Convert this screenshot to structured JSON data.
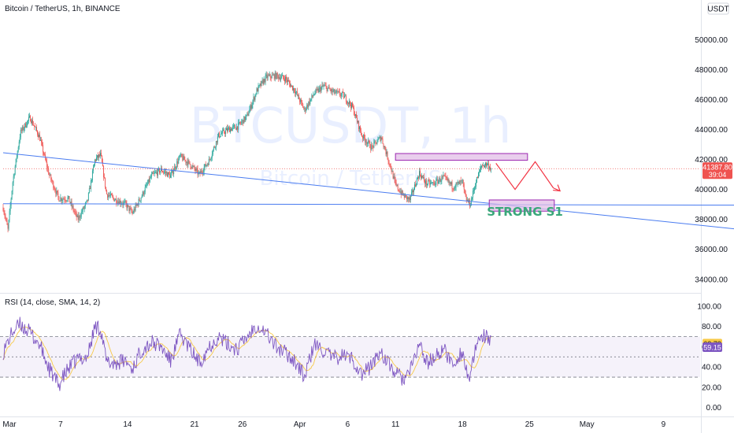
{
  "header": {
    "symbol_line": "Bitcoin / TetherUS, 1h, BINANCE",
    "currency_badge": "USDT"
  },
  "watermark": {
    "ticker": "BTCUSDT, 1h",
    "name": "Bitcoin / TetherUS"
  },
  "colors": {
    "up": "#26a69a",
    "down": "#ef5350",
    "trendline": "#4a7cf0",
    "zone_fill": "#e1bee7",
    "zone_stroke": "#9c27b0",
    "rsi_line": "#7e57c2",
    "rsi_ma": "#f7c948",
    "projection": "#f23645"
  },
  "chart_data": [
    {
      "type": "candlestick",
      "x_axis": {
        "tick_labels": [
          "Mar",
          "7",
          "14",
          "21",
          "26",
          "Apr",
          "6",
          "11",
          "18",
          "25",
          "May",
          "9"
        ],
        "tick_days": [
          0,
          6,
          13,
          20,
          25,
          31,
          36,
          41,
          48,
          55,
          61,
          69
        ],
        "last_candle_day": 51.0
      },
      "y_axis": {
        "range": [
          33200,
          51600
        ],
        "tick_labels": [
          "34000.00",
          "36000.00",
          "38000.00",
          "40000.00",
          "42000.00",
          "44000.00",
          "46000.00",
          "48000.00",
          "50000.00"
        ],
        "tick_values": [
          34000,
          36000,
          38000,
          40000,
          42000,
          44000,
          46000,
          48000,
          50000
        ]
      },
      "price_path": [
        [
          0,
          38800
        ],
        [
          0.5,
          37300
        ],
        [
          1,
          40500
        ],
        [
          1.8,
          43800
        ],
        [
          2.8,
          44800
        ],
        [
          3.8,
          43500
        ],
        [
          4.8,
          41000
        ],
        [
          5.8,
          39400
        ],
        [
          6.8,
          39400
        ],
        [
          7.8,
          38000
        ],
        [
          8.8,
          39200
        ],
        [
          9.6,
          42000
        ],
        [
          10.2,
          42300
        ],
        [
          10.8,
          39700
        ],
        [
          11.8,
          39300
        ],
        [
          12.8,
          39000
        ],
        [
          13.5,
          38400
        ],
        [
          14.5,
          39600
        ],
        [
          15.5,
          40900
        ],
        [
          16.5,
          41300
        ],
        [
          17.5,
          40900
        ],
        [
          18.5,
          42200
        ],
        [
          19.5,
          41700
        ],
        [
          20.5,
          41000
        ],
        [
          21.5,
          41900
        ],
        [
          22.5,
          43600
        ],
        [
          23.5,
          44000
        ],
        [
          24.5,
          44200
        ],
        [
          25.5,
          44900
        ],
        [
          26.5,
          46600
        ],
        [
          27.5,
          47500
        ],
        [
          28.5,
          47600
        ],
        [
          29.5,
          47400
        ],
        [
          30.5,
          46600
        ],
        [
          31.5,
          45300
        ],
        [
          32.5,
          46400
        ],
        [
          33.5,
          46900
        ],
        [
          34.5,
          46500
        ],
        [
          35.5,
          46300
        ],
        [
          36.5,
          45500
        ],
        [
          37.5,
          43600
        ],
        [
          38.5,
          42800
        ],
        [
          39.5,
          43500
        ],
        [
          40,
          42500
        ],
        [
          40.5,
          41500
        ],
        [
          41,
          40300
        ],
        [
          41.8,
          39600
        ],
        [
          42.5,
          39300
        ],
        [
          43.5,
          41100
        ],
        [
          44.2,
          40400
        ],
        [
          45,
          40400
        ],
        [
          46,
          40800
        ],
        [
          47,
          40200
        ],
        [
          48,
          40500
        ],
        [
          48.3,
          39400
        ],
        [
          48.8,
          39000
        ],
        [
          49.3,
          40300
        ],
        [
          50,
          41600
        ],
        [
          50.6,
          41700
        ],
        [
          51,
          41387.8
        ]
      ],
      "last_price": {
        "label": "41387.80",
        "countdown": "39:04",
        "value": 41387.8
      },
      "resistance_zone": {
        "from_day": 41.0,
        "to_day": 54.8,
        "low": 41950,
        "high": 42400
      },
      "support_zone": {
        "from_day": 50.8,
        "to_day": 57.6,
        "low": 38550,
        "high": 39300
      },
      "support_label": "STRONG S1",
      "trendlines": [
        {
          "from": [
            0,
            42450
          ],
          "to": [
            79,
            37200
          ]
        },
        {
          "from": [
            0,
            39050
          ],
          "to": [
            79,
            38950
          ]
        }
      ],
      "projection_path": [
        [
          51.5,
          41750
        ],
        [
          53.5,
          40000
        ],
        [
          55.6,
          41850
        ],
        [
          57.5,
          40100
        ]
      ],
      "projection_arrow_end": [
        58.2,
        39900
      ]
    },
    {
      "type": "line",
      "title": "RSI (14, close, SMA, 14, 2)",
      "y_axis": {
        "range": [
          -8,
          110
        ],
        "tick_labels": [
          "0.00",
          "20.00",
          "40.00",
          "60.00",
          "80.00",
          "100.00"
        ],
        "tick_values": [
          0,
          20,
          40,
          60,
          80,
          100
        ]
      },
      "bands": {
        "upper": 70,
        "middle": 50,
        "lower": 30
      },
      "rsi_path": [
        [
          0,
          55
        ],
        [
          1,
          75
        ],
        [
          1.8,
          82
        ],
        [
          2.8,
          74
        ],
        [
          3.8,
          62
        ],
        [
          4.8,
          38
        ],
        [
          5.8,
          22
        ],
        [
          6.8,
          38
        ],
        [
          7.8,
          48
        ],
        [
          8.8,
          50
        ],
        [
          9.6,
          80
        ],
        [
          10.2,
          78
        ],
        [
          10.8,
          44
        ],
        [
          11.8,
          44
        ],
        [
          12.8,
          46
        ],
        [
          13.5,
          38
        ],
        [
          14.5,
          58
        ],
        [
          15.5,
          64
        ],
        [
          16.5,
          60
        ],
        [
          17.5,
          46
        ],
        [
          18.5,
          72
        ],
        [
          19.5,
          58
        ],
        [
          20.5,
          44
        ],
        [
          21.5,
          60
        ],
        [
          22.5,
          70
        ],
        [
          23.5,
          62
        ],
        [
          24.5,
          58
        ],
        [
          25.5,
          70
        ],
        [
          26.5,
          82
        ],
        [
          27.5,
          74
        ],
        [
          28.5,
          60
        ],
        [
          29.5,
          54
        ],
        [
          30.5,
          46
        ],
        [
          31.5,
          30
        ],
        [
          32.5,
          62
        ],
        [
          33.5,
          56
        ],
        [
          34.5,
          48
        ],
        [
          35.5,
          52
        ],
        [
          36.5,
          48
        ],
        [
          37.5,
          32
        ],
        [
          38.5,
          42
        ],
        [
          39.5,
          56
        ],
        [
          40,
          46
        ],
        [
          40.5,
          40
        ],
        [
          41,
          34
        ],
        [
          41.8,
          28
        ],
        [
          42.5,
          34
        ],
        [
          43.5,
          64
        ],
        [
          44.2,
          44
        ],
        [
          45,
          48
        ],
        [
          46,
          58
        ],
        [
          47,
          42
        ],
        [
          48,
          56
        ],
        [
          48.3,
          40
        ],
        [
          48.8,
          28
        ],
        [
          49.3,
          54
        ],
        [
          50,
          72
        ],
        [
          50.6,
          68
        ],
        [
          51,
          62.73
        ]
      ],
      "rsi_value": {
        "label": "62.73",
        "value": 62.73
      },
      "ma_value": {
        "label": "59.15",
        "value": 59.15
      }
    }
  ]
}
